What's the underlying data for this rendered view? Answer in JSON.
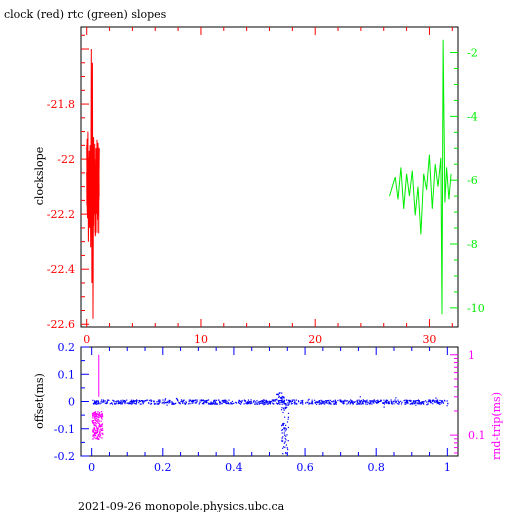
{
  "title": "clock (red) rtc (green) slopes",
  "footer": "2021-09-26 monopole.physics.ubc.ca",
  "colors": {
    "red": "#ff0000",
    "green": "#00ee00",
    "blue": "#0000ff",
    "magenta": "#ff00ff",
    "frame": "#000000"
  },
  "chart_data": [
    {
      "type": "line",
      "title": "clock (red) rtc (green) slopes",
      "ylabel": "clockslope",
      "xlim": [
        -0.5,
        32.5
      ],
      "ylim": [
        -22.61,
        -21.52
      ],
      "y2lim": [
        -10.6,
        -1.2
      ],
      "x_ticks": [
        "0",
        "10",
        "20",
        "30"
      ],
      "y_ticks": [
        "-21.8",
        "-22",
        "-22.2",
        "-22.4",
        "-22.6"
      ],
      "y2_ticks": [
        "-2",
        "-4",
        "-6",
        "-8",
        "-10"
      ],
      "series": [
        {
          "name": "clock",
          "color": "#ff0000",
          "axis": "left",
          "x": [
            0.0,
            0.05,
            0.1,
            0.15,
            0.2,
            0.25,
            0.3,
            0.35,
            0.4,
            0.45,
            0.5,
            0.55,
            0.6,
            0.65,
            0.7,
            0.75,
            0.8,
            0.85,
            0.9,
            0.95,
            1.0,
            1.05,
            1.1
          ],
          "y": [
            -21.95,
            -22.2,
            -21.9,
            -22.3,
            -22.05,
            -22.25,
            -21.95,
            -22.32,
            -21.6,
            -22.45,
            -21.65,
            -22.58,
            -21.92,
            -22.2,
            -22.0,
            -22.28,
            -21.96,
            -22.18,
            -21.93,
            -22.22,
            -22.0,
            -22.15,
            -21.96
          ]
        },
        {
          "name": "rtc",
          "color": "#00ee00",
          "axis": "right",
          "x": [
            26.5,
            26.75,
            27.0,
            27.25,
            27.5,
            27.75,
            28.0,
            28.25,
            28.5,
            28.75,
            29.0,
            29.25,
            29.5,
            29.75,
            30.0,
            30.25,
            30.5,
            30.75,
            31.0,
            31.1,
            31.2,
            31.35,
            31.5,
            31.7,
            31.9
          ],
          "y": [
            -6.5,
            -6.2,
            -5.9,
            -6.6,
            -5.6,
            -6.9,
            -5.8,
            -6.5,
            -5.7,
            -7.1,
            -6.2,
            -7.7,
            -5.8,
            -6.3,
            -5.2,
            -6.9,
            -5.5,
            -6.2,
            -5.3,
            -10.2,
            -1.6,
            -6.7,
            -5.6,
            -6.6,
            -5.8
          ]
        }
      ]
    },
    {
      "type": "scatter",
      "ylabel": "offset(ms)",
      "y2label": "rnd-trip(ms)",
      "xlim": [
        -0.03,
        1.03
      ],
      "ylim": [
        -0.2,
        0.2
      ],
      "y2_scale": "log",
      "y2lim": [
        0.055,
        1.25
      ],
      "x_ticks": [
        "0",
        "0.2",
        "0.4",
        "0.6",
        "0.8",
        "1"
      ],
      "y_ticks": [
        "0.2",
        "0.1",
        "0",
        "-0.1",
        "-0.2"
      ],
      "y2_ticks": [
        "1",
        "0.1"
      ],
      "series": [
        {
          "name": "offset",
          "color": "#0000ff",
          "axis": "left",
          "baseline": 0.0,
          "scatter_spread": 0.008,
          "x_range": [
            0.0,
            1.0
          ],
          "spike_x": 0.54,
          "spike_min": -0.19
        },
        {
          "name": "rnd-trip",
          "color": "#ff00ff",
          "axis": "right",
          "x_range": [
            0.0,
            0.03
          ],
          "typical": [
            0.09,
            0.2
          ],
          "spike_max": 1.0
        }
      ]
    }
  ]
}
